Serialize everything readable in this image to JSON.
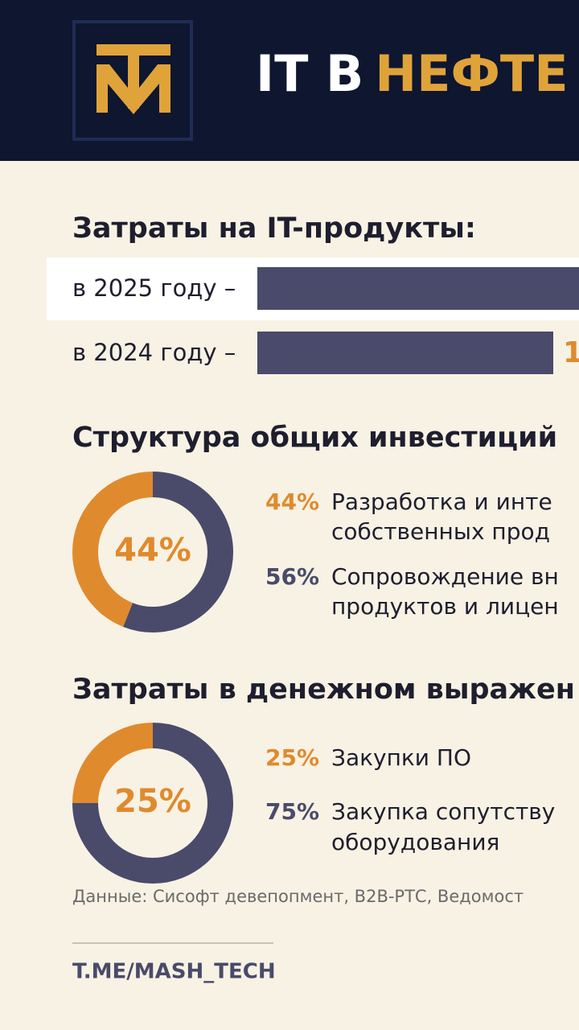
{
  "header": {
    "title_white": "IT В",
    "title_gold": "НЕФТЕ"
  },
  "costs": {
    "title": "Затраты на IT-продукты:",
    "rows": [
      {
        "label": "в 2025 году –"
      },
      {
        "label": "в 2024 году –",
        "value_text": "1"
      }
    ]
  },
  "donuts": [
    {
      "title": "Структура общих инвестиций",
      "values": [
        44,
        56
      ],
      "value_labels": [
        "44%",
        "56%"
      ],
      "colors": [
        "#e08a2e",
        "#4a4a6a"
      ],
      "legend": [
        [
          "Разработка и инте",
          "собственных прод"
        ],
        [
          "Сопровождение вн",
          "продуктов и лицен"
        ]
      ]
    },
    {
      "title": "Затраты в денежном выражен",
      "values": [
        25,
        75
      ],
      "value_labels": [
        "25%",
        "75%"
      ],
      "colors": [
        "#e08a2e",
        "#4a4a6a"
      ],
      "legend": [
        [
          "Закупки ПО"
        ],
        [
          "Закупка сопутству",
          "оборудования"
        ]
      ]
    }
  ],
  "footer": {
    "source": "Данные: Сисофт девепопмент, B2B-РТС, Ведомост",
    "link": "T.ME/MASH_TECH"
  }
}
